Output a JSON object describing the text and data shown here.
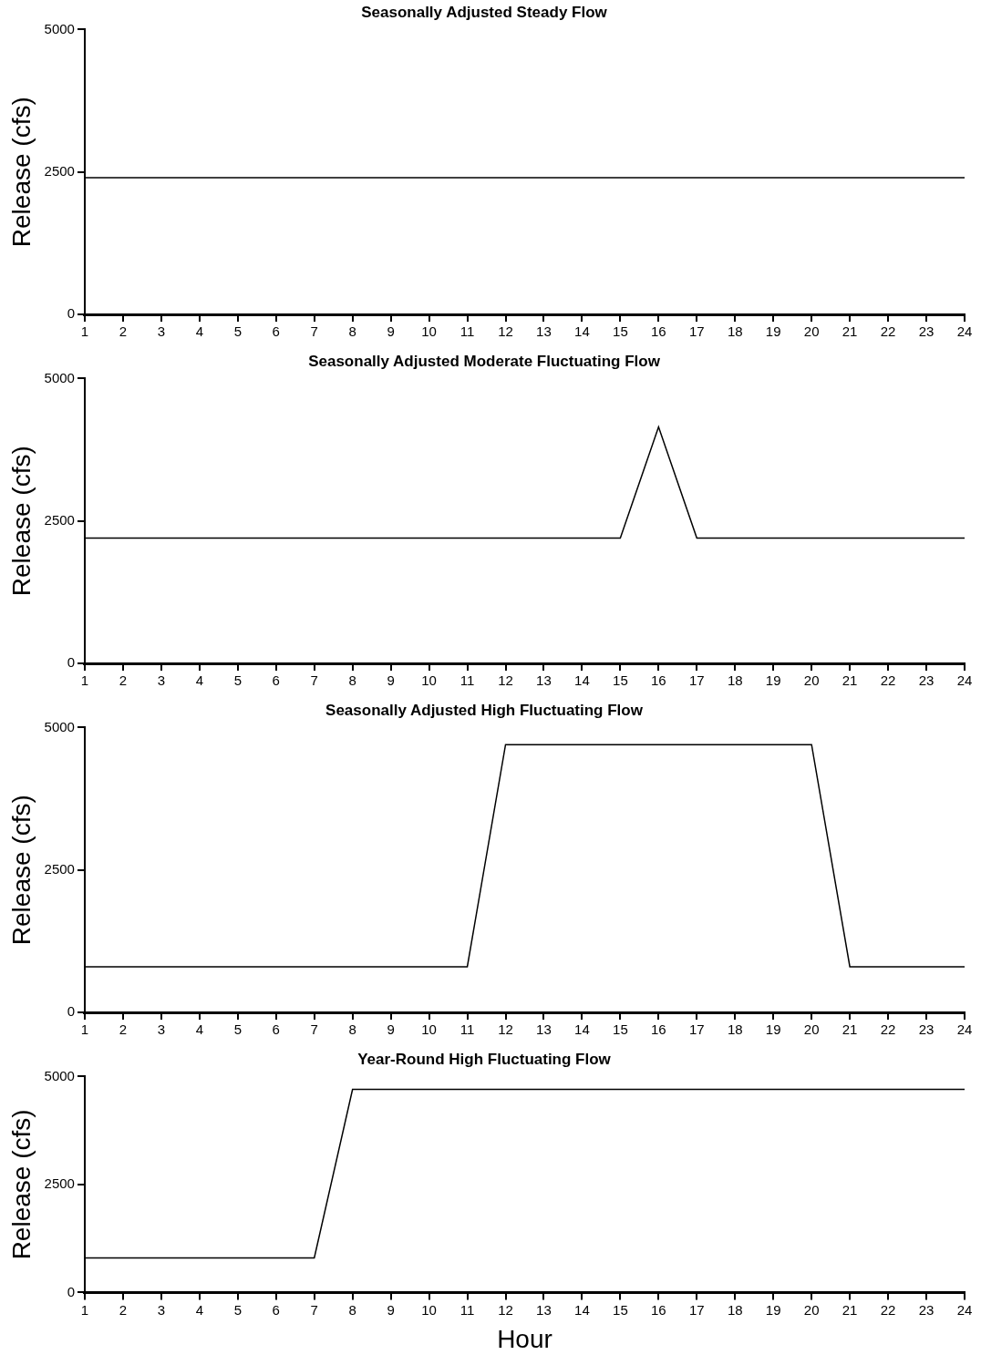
{
  "chart_data": [
    {
      "type": "line",
      "title": "Seasonally Adjusted Steady Flow",
      "ylabel": "Release (cfs)",
      "color": "#000000",
      "x": [
        1,
        24
      ],
      "values": [
        2400,
        2400
      ],
      "xlim": [
        1,
        24
      ],
      "xticks": [
        1,
        2,
        3,
        4,
        5,
        6,
        7,
        8,
        9,
        10,
        11,
        12,
        13,
        14,
        15,
        16,
        17,
        18,
        19,
        20,
        21,
        22,
        23,
        24
      ],
      "ylim": [
        0,
        5000
      ],
      "yticks": [
        0,
        2500,
        5000
      ]
    },
    {
      "type": "line",
      "title": "Seasonally Adjusted Moderate Fluctuating Flow",
      "ylabel": "Release (cfs)",
      "color": "#000000",
      "x": [
        1,
        15,
        16,
        17,
        24
      ],
      "values": [
        2200,
        2200,
        4150,
        2200,
        2200
      ],
      "xlim": [
        1,
        24
      ],
      "xticks": [
        1,
        2,
        3,
        4,
        5,
        6,
        7,
        8,
        9,
        10,
        11,
        12,
        13,
        14,
        15,
        16,
        17,
        18,
        19,
        20,
        21,
        22,
        23,
        24
      ],
      "ylim": [
        0,
        5000
      ],
      "yticks": [
        0,
        2500,
        5000
      ]
    },
    {
      "type": "line",
      "title": "Seasonally Adjusted High Fluctuating Flow",
      "ylabel": "Release (cfs)",
      "color": "#000000",
      "x": [
        1,
        11,
        12,
        20,
        21,
        24
      ],
      "values": [
        800,
        800,
        4700,
        4700,
        800,
        800
      ],
      "xlim": [
        1,
        24
      ],
      "xticks": [
        1,
        2,
        3,
        4,
        5,
        6,
        7,
        8,
        9,
        10,
        11,
        12,
        13,
        14,
        15,
        16,
        17,
        18,
        19,
        20,
        21,
        22,
        23,
        24
      ],
      "ylim": [
        0,
        5000
      ],
      "yticks": [
        0,
        2500,
        5000
      ]
    },
    {
      "type": "line",
      "title": "Year-Round High Fluctuating Flow",
      "ylabel": "Release (cfs)",
      "xlabel": "Hour",
      "color": "#000000",
      "x": [
        1,
        7,
        8,
        24
      ],
      "values": [
        800,
        800,
        4700,
        4700
      ],
      "xlim": [
        1,
        24
      ],
      "xticks": [
        1,
        2,
        3,
        4,
        5,
        6,
        7,
        8,
        9,
        10,
        11,
        12,
        13,
        14,
        15,
        16,
        17,
        18,
        19,
        20,
        21,
        22,
        23,
        24
      ],
      "ylim": [
        0,
        5000
      ],
      "yticks": [
        0,
        2500,
        5000
      ]
    }
  ]
}
